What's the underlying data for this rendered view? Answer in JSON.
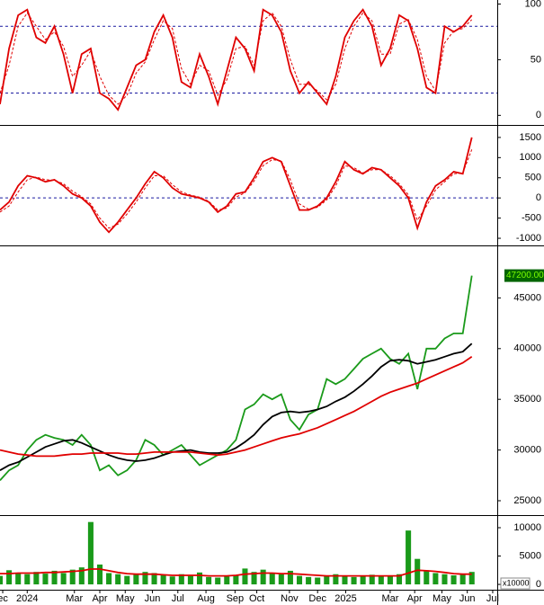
{
  "chart_data": [
    {
      "type": "line",
      "x": [
        0,
        1,
        2,
        3,
        4,
        5,
        6,
        7,
        8,
        9,
        10,
        11,
        12,
        13,
        14,
        15,
        16,
        17,
        18,
        19,
        20,
        21,
        22,
        23,
        24,
        25,
        26,
        27,
        28,
        29,
        30,
        31,
        32,
        33,
        34,
        35,
        36,
        37,
        38,
        39,
        40,
        41,
        42,
        43,
        44,
        45,
        46,
        47,
        48,
        49,
        50,
        51,
        52
      ],
      "xlim": [
        0,
        54.8
      ],
      "ylim": [
        -7,
        102
      ],
      "yticks": [
        0,
        50,
        100
      ],
      "hlines": [
        20,
        80
      ],
      "hline_color": "#1a1aa0",
      "series": [
        {
          "color": "#e00000",
          "dashed": false,
          "values": [
            10,
            60,
            90,
            95,
            70,
            65,
            80,
            55,
            20,
            55,
            60,
            20,
            15,
            5,
            25,
            45,
            50,
            75,
            90,
            70,
            30,
            25,
            55,
            35,
            10,
            40,
            70,
            60,
            40,
            95,
            90,
            75,
            40,
            20,
            30,
            20,
            10,
            35,
            70,
            85,
            95,
            80,
            45,
            60,
            90,
            85,
            60,
            25,
            20,
            80,
            75,
            80,
            90
          ]
        },
        {
          "color": "#e00000",
          "dashed": true,
          "values": [
            20,
            45,
            80,
            92,
            80,
            68,
            75,
            62,
            35,
            45,
            58,
            35,
            18,
            10,
            18,
            38,
            48,
            68,
            85,
            78,
            42,
            28,
            45,
            40,
            18,
            32,
            60,
            62,
            45,
            85,
            92,
            80,
            50,
            28,
            28,
            22,
            14,
            28,
            60,
            80,
            92,
            85,
            55,
            55,
            82,
            86,
            68,
            35,
            22,
            65,
            76,
            78,
            86
          ]
        }
      ]
    },
    {
      "type": "line",
      "x": [
        0,
        1,
        2,
        3,
        4,
        5,
        6,
        7,
        8,
        9,
        10,
        11,
        12,
        13,
        14,
        15,
        16,
        17,
        18,
        19,
        20,
        21,
        22,
        23,
        24,
        25,
        26,
        27,
        28,
        29,
        30,
        31,
        32,
        33,
        34,
        35,
        36,
        37,
        38,
        39,
        40,
        41,
        42,
        43,
        44,
        45,
        46,
        47,
        48,
        49,
        50,
        51,
        52
      ],
      "xlim": [
        0,
        54.8
      ],
      "ylim": [
        -1155,
        1765
      ],
      "yticks": [
        -1000,
        -500,
        0,
        500,
        1000,
        1500
      ],
      "hlines": [
        0
      ],
      "hline_color": "#1a1aa0",
      "series": [
        {
          "color": "#e00000",
          "dashed": false,
          "values": [
            -300,
            -100,
            300,
            550,
            500,
            400,
            450,
            300,
            100,
            0,
            -200,
            -600,
            -850,
            -600,
            -300,
            0,
            350,
            650,
            500,
            250,
            100,
            50,
            0,
            -100,
            -350,
            -200,
            100,
            150,
            500,
            900,
            1000,
            900,
            300,
            -300,
            -300,
            -200,
            0,
            400,
            900,
            700,
            600,
            750,
            700,
            500,
            300,
            0,
            -750,
            -100,
            300,
            450,
            650,
            600,
            1500
          ]
        },
        {
          "color": "#e00000",
          "dashed": true,
          "values": [
            -350,
            -200,
            150,
            450,
            520,
            450,
            440,
            350,
            170,
            30,
            -150,
            -500,
            -750,
            -650,
            -400,
            -100,
            250,
            550,
            550,
            330,
            150,
            70,
            20,
            -80,
            -300,
            -250,
            20,
            130,
            420,
            800,
            950,
            920,
            450,
            -150,
            -280,
            -230,
            -50,
            300,
            800,
            750,
            620,
            700,
            700,
            550,
            350,
            80,
            -550,
            -200,
            200,
            400,
            600,
            620,
            1200
          ]
        }
      ]
    },
    {
      "type": "line",
      "x": [
        0,
        1,
        2,
        3,
        4,
        5,
        6,
        7,
        8,
        9,
        10,
        11,
        12,
        13,
        14,
        15,
        16,
        17,
        18,
        19,
        20,
        21,
        22,
        23,
        24,
        25,
        26,
        27,
        28,
        29,
        30,
        31,
        32,
        33,
        34,
        35,
        36,
        37,
        38,
        39,
        40,
        41,
        42,
        43,
        44,
        45,
        46,
        47,
        48,
        49,
        50,
        51,
        52
      ],
      "xlim": [
        0,
        54.8
      ],
      "ylim": [
        23670,
        50000
      ],
      "yticks": [
        25000,
        30000,
        35000,
        40000,
        45000
      ],
      "last_price": {
        "value": 47200,
        "label": "47200.00"
      },
      "last_price_color": "#006400",
      "series": [
        {
          "color": "#1a9a1a",
          "dashed": false,
          "values": [
            27000,
            28000,
            28500,
            30000,
            31000,
            31500,
            31200,
            31000,
            30500,
            31500,
            30500,
            28000,
            28500,
            27500,
            28000,
            29000,
            31000,
            30500,
            29500,
            30000,
            30500,
            29500,
            28500,
            29000,
            29500,
            30000,
            31000,
            34000,
            34500,
            35500,
            35000,
            35500,
            33000,
            32000,
            33500,
            34000,
            37000,
            36500,
            37000,
            38000,
            39000,
            39500,
            40000,
            39000,
            38500,
            39500,
            36000,
            40000,
            40000,
            41000,
            41500,
            41500,
            47200
          ]
        },
        {
          "color": "#000000",
          "dashed": false,
          "values": [
            28000,
            28500,
            28800,
            29300,
            29800,
            30300,
            30600,
            30900,
            31000,
            30700,
            30300,
            29900,
            29500,
            29200,
            29000,
            28900,
            29000,
            29200,
            29500,
            29800,
            29900,
            30000,
            29800,
            29700,
            29700,
            29800,
            30200,
            30800,
            31500,
            32500,
            33300,
            33700,
            33800,
            33700,
            33800,
            34000,
            34300,
            34800,
            35200,
            35800,
            36500,
            37300,
            38200,
            38800,
            38900,
            38800,
            38500,
            38700,
            38900,
            39200,
            39500,
            39700,
            40500
          ]
        },
        {
          "color": "#e00000",
          "dashed": false,
          "values": [
            30000,
            29800,
            29600,
            29500,
            29400,
            29400,
            29400,
            29500,
            29600,
            29600,
            29700,
            29700,
            29700,
            29700,
            29600,
            29600,
            29700,
            29800,
            29800,
            29800,
            29800,
            29800,
            29700,
            29600,
            29500,
            29600,
            29800,
            30000,
            30300,
            30600,
            30900,
            31200,
            31400,
            31600,
            31900,
            32200,
            32600,
            33000,
            33400,
            33800,
            34300,
            34800,
            35300,
            35700,
            36000,
            36300,
            36600,
            37000,
            37400,
            37800,
            38200,
            38600,
            39200
          ]
        }
      ]
    },
    {
      "type": "bar",
      "x": [
        0,
        1,
        2,
        3,
        4,
        5,
        6,
        7,
        8,
        9,
        10,
        11,
        12,
        13,
        14,
        15,
        16,
        17,
        18,
        19,
        20,
        21,
        22,
        23,
        24,
        25,
        26,
        27,
        28,
        29,
        30,
        31,
        32,
        33,
        34,
        35,
        36,
        37,
        38,
        39,
        40,
        41,
        42,
        43,
        44,
        45,
        46,
        47,
        48,
        49,
        50,
        51,
        52
      ],
      "xlim": [
        0,
        54.8
      ],
      "ylim": [
        -780,
        11900
      ],
      "yticks": [
        0,
        5000,
        10000
      ],
      "ylabel": "x10000",
      "xticks": [
        {
          "value": 0.3,
          "label": "ec"
        },
        {
          "value": 3,
          "label": "2024"
        },
        {
          "value": 8.2,
          "label": "Mar"
        },
        {
          "value": 11,
          "label": "Apr"
        },
        {
          "value": 13.8,
          "label": "May"
        },
        {
          "value": 16.8,
          "label": "Jun"
        },
        {
          "value": 19.6,
          "label": "Jul"
        },
        {
          "value": 22.7,
          "label": "Aug"
        },
        {
          "value": 25.9,
          "label": "Sep"
        },
        {
          "value": 28.3,
          "label": "Oct"
        },
        {
          "value": 31.9,
          "label": "Nov"
        },
        {
          "value": 35,
          "label": "Dec"
        },
        {
          "value": 38.1,
          "label": "2025"
        },
        {
          "value": 43,
          "label": "Mar"
        },
        {
          "value": 45.7,
          "label": "Apr"
        },
        {
          "value": 48.7,
          "label": "May"
        },
        {
          "value": 51.5,
          "label": "Jun"
        },
        {
          "value": 54.3,
          "label": "Jul"
        }
      ],
      "series": [
        {
          "kind": "bar",
          "color": "#1a9a1a",
          "values": [
            1500,
            2500,
            2000,
            1800,
            2200,
            1900,
            2400,
            2000,
            2600,
            3000,
            11000,
            3500,
            2000,
            1800,
            1500,
            1700,
            2200,
            2000,
            1600,
            1400,
            1800,
            1500,
            2100,
            1300,
            1200,
            1400,
            1600,
            2800,
            2200,
            2600,
            2000,
            1800,
            2400,
            1500,
            1300,
            1200,
            1600,
            1800,
            1400,
            1300,
            1500,
            1700,
            1400,
            1600,
            1800,
            9500,
            4500,
            2500,
            2000,
            1800,
            1600,
            1900,
            2200
          ]
        },
        {
          "kind": "line",
          "color": "#e00000",
          "values": [
            1900,
            1900,
            2000,
            2000,
            2000,
            2100,
            2100,
            2200,
            2300,
            2400,
            2700,
            2700,
            2400,
            2100,
            1900,
            1800,
            1800,
            1800,
            1700,
            1600,
            1600,
            1600,
            1600,
            1500,
            1500,
            1500,
            1600,
            1800,
            1900,
            2000,
            2000,
            1900,
            1900,
            1800,
            1700,
            1600,
            1500,
            1500,
            1500,
            1500,
            1500,
            1500,
            1500,
            1500,
            1500,
            2000,
            2500,
            2400,
            2300,
            2100,
            1900,
            1800,
            1800
          ]
        }
      ]
    }
  ]
}
